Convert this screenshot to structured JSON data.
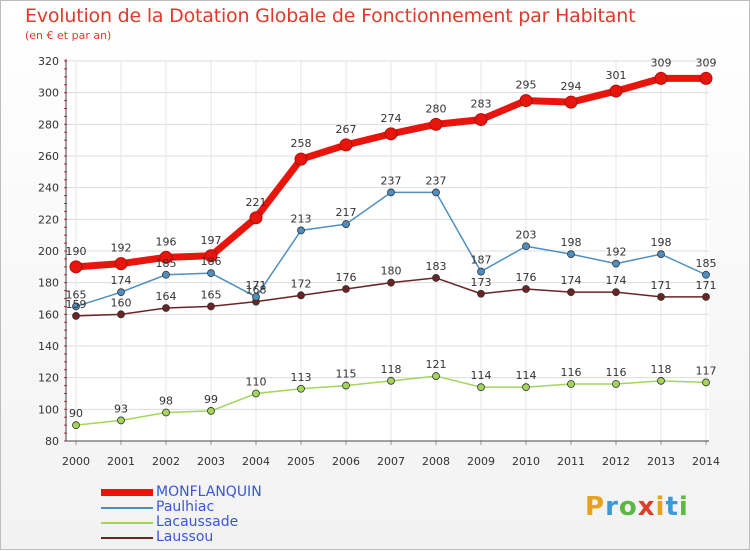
{
  "title": "Evolution de la Dotation Globale de Fonctionnement par Habitant",
  "subtitle": "(en € et par an)",
  "logo": {
    "letters": [
      "P",
      "r",
      "o",
      "x",
      "i",
      "t",
      "i"
    ],
    "colors": [
      "#e8a21a",
      "#3a9ad8",
      "#5bb840",
      "#d9402a",
      "#e8a21a",
      "#3a9ad8",
      "#5bb840"
    ]
  },
  "chart_data": {
    "type": "line",
    "title": "Evolution de la Dotation Globale de Fonctionnement par Habitant",
    "subtitle": "(en € et par an)",
    "categories": [
      "2000",
      "2001",
      "2002",
      "2003",
      "2004",
      "2005",
      "2006",
      "2007",
      "2008",
      "2009",
      "2010",
      "2011",
      "2012",
      "2013",
      "2014"
    ],
    "ylim": [
      80,
      320
    ],
    "yticks": [
      80,
      100,
      120,
      140,
      160,
      180,
      200,
      220,
      240,
      260,
      280,
      300,
      320
    ],
    "grid": true,
    "legend_position": "bottom-left",
    "series": [
      {
        "name": "MONFLANQUIN",
        "color": "#e8150c",
        "values": [
          190,
          192,
          196,
          197,
          221,
          258,
          267,
          274,
          280,
          283,
          295,
          294,
          301,
          309,
          309
        ]
      },
      {
        "name": "Paulhiac",
        "color": "#4f8fc0",
        "values": [
          165,
          174,
          185,
          186,
          171,
          213,
          217,
          237,
          237,
          187,
          203,
          198,
          192,
          198,
          185
        ]
      },
      {
        "name": "Lacaussade",
        "color": "#a3d55b",
        "values": [
          90,
          93,
          98,
          99,
          110,
          113,
          115,
          118,
          121,
          114,
          114,
          116,
          116,
          118,
          117
        ]
      },
      {
        "name": "Laussou",
        "color": "#6b2424",
        "values": [
          159,
          160,
          164,
          165,
          168,
          172,
          176,
          180,
          183,
          173,
          176,
          174,
          174,
          171,
          171
        ]
      }
    ]
  }
}
